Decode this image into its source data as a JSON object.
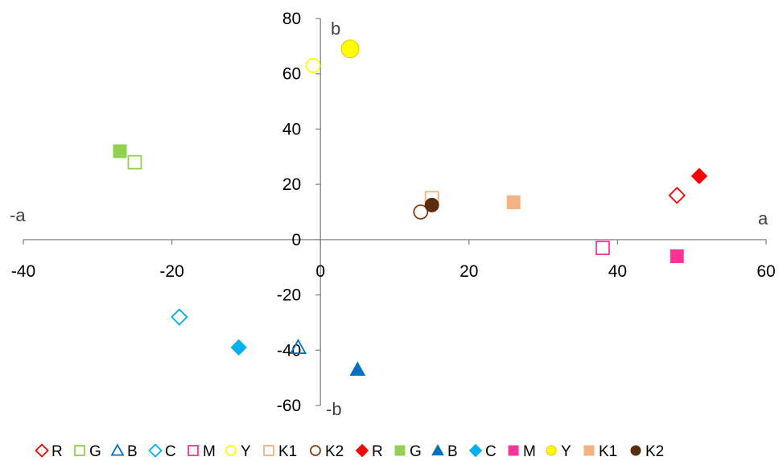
{
  "chart_data": {
    "type": "scatter",
    "title": "",
    "xlim": [
      -40,
      60
    ],
    "ylim": [
      -60,
      80
    ],
    "x_ticks": [
      -40,
      -20,
      0,
      20,
      40,
      60
    ],
    "y_ticks": [
      80,
      60,
      40,
      20,
      0,
      -20,
      -40,
      -60
    ],
    "axis_labels": {
      "neg_x": "-a",
      "pos_x": "a",
      "pos_y": "b",
      "neg_y": "-b"
    },
    "grid": false,
    "legend_position": "bottom",
    "series": [
      {
        "name": "R",
        "marker": "diamond",
        "filled": false,
        "color": "#ff0000",
        "points": [
          [
            48,
            16
          ]
        ]
      },
      {
        "name": "G",
        "marker": "square",
        "filled": false,
        "color": "#92d050",
        "points": [
          [
            -25,
            28
          ]
        ]
      },
      {
        "name": "B",
        "marker": "triangle",
        "filled": false,
        "color": "#0070c0",
        "points": [
          [
            -3,
            -39
          ]
        ]
      },
      {
        "name": "C",
        "marker": "diamond",
        "filled": false,
        "color": "#00b0f0",
        "points": [
          [
            -19,
            -28
          ]
        ]
      },
      {
        "name": "M",
        "marker": "square",
        "filled": false,
        "color": "#ff3399",
        "points": [
          [
            38,
            -3
          ]
        ]
      },
      {
        "name": "Y",
        "marker": "circle",
        "filled": false,
        "color": "#ffff00",
        "points": [
          [
            -1,
            63
          ]
        ]
      },
      {
        "name": "K1",
        "marker": "square",
        "filled": false,
        "color": "#f4b183",
        "points": [
          [
            15,
            15
          ]
        ]
      },
      {
        "name": "K2",
        "marker": "circle",
        "filled": false,
        "color": "#843c0c",
        "points": [
          [
            13.5,
            10
          ]
        ]
      },
      {
        "name": "R",
        "marker": "diamond",
        "filled": true,
        "color": "#ff0000",
        "points": [
          [
            51,
            23
          ]
        ]
      },
      {
        "name": "G",
        "marker": "square",
        "filled": true,
        "color": "#92d050",
        "points": [
          [
            -27,
            32
          ]
        ]
      },
      {
        "name": "B",
        "marker": "triangle",
        "filled": true,
        "color": "#0070c0",
        "points": [
          [
            5,
            -47
          ]
        ]
      },
      {
        "name": "C",
        "marker": "diamond",
        "filled": true,
        "color": "#00b0f0",
        "points": [
          [
            -11,
            -39
          ]
        ]
      },
      {
        "name": "M",
        "marker": "square",
        "filled": true,
        "color": "#ff3399",
        "points": [
          [
            48,
            -6
          ]
        ]
      },
      {
        "name": "Y",
        "marker": "circle",
        "filled": true,
        "color": "#ffff00",
        "points": [
          [
            4,
            69
          ]
        ]
      },
      {
        "name": "K1",
        "marker": "square",
        "filled": true,
        "color": "#f4b183",
        "points": [
          [
            26,
            13.5
          ]
        ]
      },
      {
        "name": "K2",
        "marker": "circle",
        "filled": true,
        "color": "#5a2d0c",
        "points": [
          [
            15,
            12.5
          ]
        ]
      }
    ]
  }
}
